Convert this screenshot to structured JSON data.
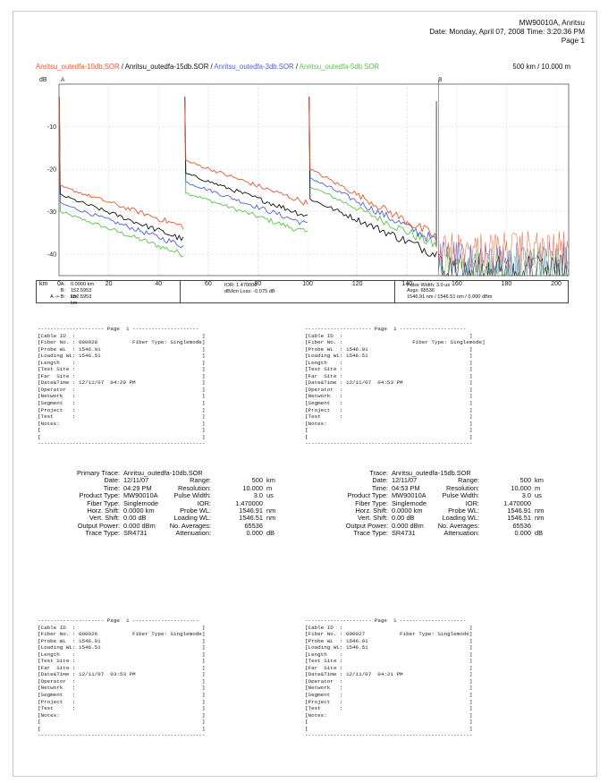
{
  "header": {
    "line1": "MW90010A, Anritsu",
    "line2": "Date: Monday, April 07, 2008   Time: 3:20:36 PM",
    "line3": "Page  1"
  },
  "legend": {
    "files": [
      {
        "name": "Anritsu_outedfa-10db.SOR",
        "color": "#f0552a"
      },
      {
        "name": "Anritsu_outedfa-15db.SOR",
        "color": "#111111"
      },
      {
        "name": "Anritsu_outedfa-3db.SOR",
        "color": "#4a63d6"
      },
      {
        "name": "Anritsu_outedfa-5db.SOR",
        "color": "#58c44a"
      }
    ],
    "separator": " / ",
    "scale": "500 km / 10.000 m"
  },
  "chart_data": {
    "type": "line",
    "xlabel": "km",
    "ylabel": "dB",
    "xlim": [
      0,
      205
    ],
    "ylim": [
      -45,
      0
    ],
    "xticks": [
      0,
      20,
      40,
      60,
      80,
      100,
      120,
      140,
      160,
      180,
      200
    ],
    "yticks": [
      -10,
      -20,
      -30,
      -40
    ],
    "grid": "dotted",
    "marker_labels": [
      "A",
      "B"
    ],
    "marker_positions_km": [
      0,
      152.5953
    ],
    "series": [
      {
        "name": "Anritsu_outedfa-10db.SOR",
        "color": "#f0552a",
        "segments": [
          [
            [
              0.5,
              -24
            ],
            [
              50,
              -33.5
            ]
          ],
          [
            [
              51,
              -18
            ],
            [
              100,
              -28
            ]
          ],
          [
            [
              101,
              -20
            ],
            [
              152,
              -36
            ]
          ]
        ],
        "noise_level": -36
      },
      {
        "name": "Anritsu_outedfa-15db.SOR",
        "color": "#111111",
        "segments": [
          [
            [
              0.5,
              -26
            ],
            [
              50,
              -36.5
            ]
          ],
          [
            [
              51,
              -21
            ],
            [
              100,
              -31
            ]
          ],
          [
            [
              101,
              -27
            ],
            [
              152,
              -40
            ]
          ]
        ],
        "noise_level": -40
      },
      {
        "name": "Anritsu_outedfa-3db.SOR",
        "color": "#4a63d6",
        "segments": [
          [
            [
              0.5,
              -28
            ],
            [
              50,
              -38
            ]
          ],
          [
            [
              51,
              -23
            ],
            [
              100,
              -33
            ]
          ],
          [
            [
              101,
              -22
            ],
            [
              152,
              -37
            ]
          ]
        ],
        "noise_level": -37
      },
      {
        "name": "Anritsu_outedfa-5db.SOR",
        "color": "#58c44a",
        "segments": [
          [
            [
              0.5,
              -30
            ],
            [
              50,
              -40
            ]
          ],
          [
            [
              51,
              -25.5
            ],
            [
              100,
              -35
            ]
          ],
          [
            [
              101,
              -24
            ],
            [
              152,
              -38
            ]
          ]
        ],
        "noise_level": -38
      }
    ]
  },
  "markers": {
    "a_label": "A:",
    "a_value": "0.0000 km",
    "b_label": "B:",
    "b_value": "152.5953 km",
    "ab_label": "A -> B:",
    "ab_value": "152.5953 km",
    "ior": "IOR: 1.470000",
    "loss": "dB/km Loss:  -0.075 dB",
    "pulse": "Pulse Width:  3.0 us",
    "avgs": "Avgs: 65536",
    "wl": "1546.91 nm / 1546.51 nm / 0.000 dBm"
  },
  "panels": [
    {
      "text": "--------------------- Page  1 ---------------------\n[Cable ID  :                                        ]\n[Fiber No. : 000028           Fiber Type: Singlemode]\n[Probe WL  : 1546.91                                ]\n[Loading WL: 1546.51                                ]\n[Length    :                                        ]\n[Test Site :                                        ]\n[Far  Site :                                        ]\n[Date&Time : 12/11/07  04:29 PM                     ]\n[Operator  :                                        ]\n[Network   :                                        ]\n[Segment   :                                        ]\n[Project   :                                        ]\n[Test      :                                        ]\n[Notes:                                             ]\n[                                                   ]\n[                                                   ]\n-----------------------------------------------------"
    },
    {
      "text": "--------------------- Page  1 ---------------------\n[Cable ID  :                                        ]\n[Fiber No. :                      Fiber Type: Singlemode]\n[Probe WL  : 1546.91                                ]\n[Loading WL: 1546.51                                ]\n[Length    :                                        ]\n[Test Site :                                        ]\n[Far  Site :                                        ]\n[Date&Time : 12/11/07  04:53 PM                     ]\n[Operator  :                                        ]\n[Network   :                                        ]\n[Segment   :                                        ]\n[Project   :                                        ]\n[Test      :                                        ]\n[Notes:                                             ]\n[                                                   ]\n[                                                   ]\n-----------------------------------------------------"
    },
    {
      "text": "--------------------- Page  1 ---------------------\n[Cable ID  :                                        ]\n[Fiber No. : 000026           Fiber Type: Singlemode]\n[Probe WL  : 1546.91                                ]\n[Loading WL: 1546.51                                ]\n[Length    :                                        ]\n[Test Site :                                        ]\n[Far  Site :                                        ]\n[Date&Time : 12/11/07  03:53 PM                     ]\n[Operator  :                                        ]\n[Network   :                                        ]\n[Segment   :                                        ]\n[Project   :                                        ]\n[Test      :                                        ]\n[Notes:                                             ]\n[                                                   ]\n[                                                   ]\n-----------------------------------------------------"
    },
    {
      "text": "--------------------- Page  1 ---------------------\n[Cable ID  :                                        ]\n[Fiber No. : 000027           Fiber Type: Singlemode]\n[Probe WL  : 1546.91                                ]\n[Loading WL: 1546.51                                ]\n[Length    :                                        ]\n[Test Site :                                        ]\n[Far  Site :                                        ]\n[Date&Time : 12/11/07  04:21 PM                     ]\n[Operator  :                                        ]\n[Network   :                                        ]\n[Segment   :                                        ]\n[Project   :                                        ]\n[Test      :                                        ]\n[Notes:                                             ]\n[                                                   ]\n[                                                   ]\n-----------------------------------------------------"
    }
  ],
  "summaries": [
    {
      "trace_label": "Primary Trace:",
      "trace_value": "Anritsu_outedfa-10db.SOR",
      "left": [
        {
          "label": "Date:",
          "value": "12/11/07"
        },
        {
          "label": "Time:",
          "value": "04:29 PM"
        },
        {
          "label": "Product Type:",
          "value": "MW90010A"
        },
        {
          "label": "Fiber Type:",
          "value": "Singlemode"
        },
        {
          "label": "Horz. Shift:",
          "value": "0.0000 km"
        },
        {
          "label": "Vert. Shift:",
          "value": "0.00 dB"
        },
        {
          "label": "Output Power:",
          "value": "0.000 dBm"
        },
        {
          "label": "Trace Type:",
          "value": "SR4731"
        }
      ],
      "right": [
        {
          "label": "Range:",
          "value": "500",
          "unit": "km"
        },
        {
          "label": "Resolution:",
          "value": "10.000",
          "unit": "m"
        },
        {
          "label": "Pulse Width:",
          "value": "3.0",
          "unit": "us"
        },
        {
          "label": "IOR:",
          "value": "1.470000",
          "unit": ""
        },
        {
          "label": "Probe WL:",
          "value": "1546.91",
          "unit": "nm"
        },
        {
          "label": "Loading WL:",
          "value": "1546.51",
          "unit": "nm"
        },
        {
          "label": "No. Averages:",
          "value": "65536",
          "unit": ""
        },
        {
          "label": "Attenuation:",
          "value": "0.000",
          "unit": "dB"
        }
      ]
    },
    {
      "trace_label": "Trace:",
      "trace_value": "Anritsu_outedfa-15db.SOR",
      "left": [
        {
          "label": "Date:",
          "value": "12/11/07"
        },
        {
          "label": "Time:",
          "value": "04:53 PM"
        },
        {
          "label": "Product Type:",
          "value": "MW90010A"
        },
        {
          "label": "Fiber Type:",
          "value": "Singlemode"
        },
        {
          "label": "Horz. Shift:",
          "value": "0.0000 km"
        },
        {
          "label": "Vert. Shift:",
          "value": "0.00 dB"
        },
        {
          "label": "Output Power:",
          "value": "0.000 dBm"
        },
        {
          "label": "Trace Type:",
          "value": "SR4731"
        }
      ],
      "right": [
        {
          "label": "Range:",
          "value": "500",
          "unit": "km"
        },
        {
          "label": "Resolution:",
          "value": "10.000",
          "unit": "m"
        },
        {
          "label": "Pulse Width:",
          "value": "3.0",
          "unit": "us"
        },
        {
          "label": "IOR:",
          "value": "1.470000",
          "unit": ""
        },
        {
          "label": "Probe WL:",
          "value": "1546.91",
          "unit": "nm"
        },
        {
          "label": "Loading WL:",
          "value": "1546.51",
          "unit": "nm"
        },
        {
          "label": "No. Averages:",
          "value": "65536",
          "unit": ""
        },
        {
          "label": "Attenuation:",
          "value": "0.000",
          "unit": "dB"
        }
      ]
    }
  ]
}
